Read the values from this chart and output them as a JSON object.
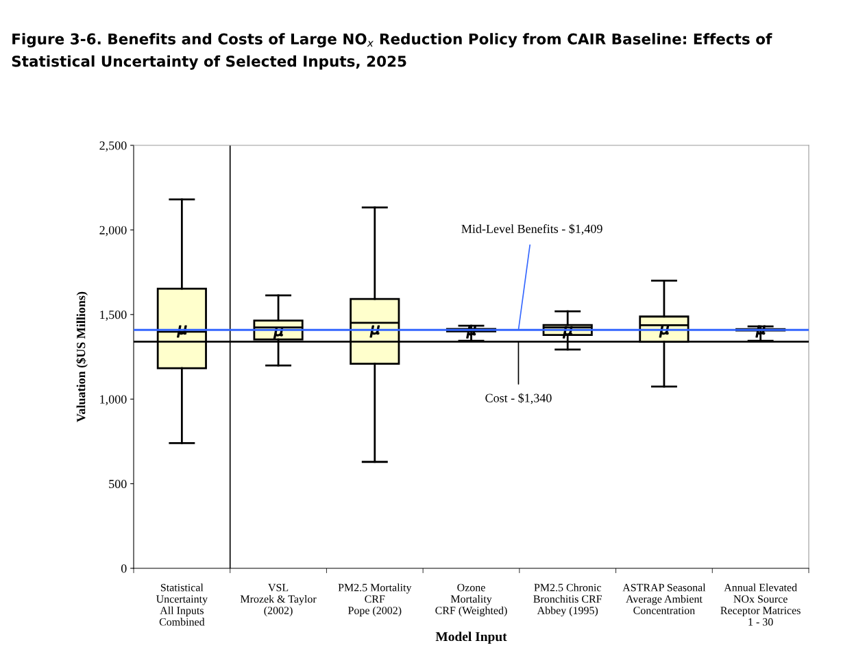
{
  "chart_data": {
    "type": "box",
    "title": "Figure 3-6. Benefits and Costs of Large NO$_{x}$ Reduction Policy from CAIR Baseline: Effects of Statistical Uncertainty of Selected Inputs, 2025",
    "xlabel": "Model Input",
    "ylabel": "Valuation ($US Millions)",
    "categories": [
      "Statistical\nUncertainty\nAll Inputs\nCombined",
      "VSL\nMrozek & Taylor\n(2002)",
      "PM2.5 Mortality\nCRF\nPope (2002)",
      "Ozone\nMortality\nCRF (Weighted)",
      "PM2.5 Chronic\nBronchitis CRF\nAbbey (1995)",
      "ASTRAP Seasonal\nAverage Ambient\nConcentration",
      "Annual Elevated\nNOx Source\nReceptor Matrices\n1 - 30"
    ],
    "color": "#ffffcc",
    "boxes": [
      {
        "low": 740,
        "q1": 1183,
        "median": 1398,
        "q3": 1653,
        "high": 2180,
        "mean": 1400
      },
      {
        "low": 1199,
        "q1": 1353,
        "median": 1424,
        "q3": 1464,
        "high": 1613,
        "mean": 1390
      },
      {
        "low": 629,
        "q1": 1209,
        "median": 1451,
        "q3": 1592,
        "high": 2133,
        "mean": 1400
      },
      {
        "low": 1345,
        "q1": 1400,
        "median": 1409,
        "q3": 1415,
        "high": 1434,
        "mean": 1395
      },
      {
        "low": 1293,
        "q1": 1379,
        "median": 1424,
        "q3": 1438,
        "high": 1519,
        "mean": 1395
      },
      {
        "low": 1074,
        "q1": 1340,
        "median": 1437,
        "q3": 1488,
        "high": 1700,
        "mean": 1400
      },
      {
        "low": 1345,
        "q1": 1406,
        "median": 1410,
        "q3": 1414,
        "high": 1430,
        "mean": 1400
      }
    ],
    "ylim": [
      0,
      2500
    ],
    "yticks": [
      {
        "value": 0,
        "label": "0"
      },
      {
        "value": 500,
        "label": "500"
      },
      {
        "value": 1000,
        "label": "1,000"
      },
      {
        "value": 1500,
        "label": "1,500"
      },
      {
        "value": 2000,
        "label": "2,000"
      },
      {
        "value": 2500,
        "label": "2,500"
      }
    ],
    "ref_lines": [
      {
        "axis": "y",
        "value": 1409,
        "label": "Mid-Level Benefits - $1,409",
        "color": "#3366ff"
      },
      {
        "axis": "y",
        "value": 1340,
        "label": "Cost - $1,340",
        "color": "#000000"
      }
    ],
    "grid": false,
    "legend": false
  }
}
